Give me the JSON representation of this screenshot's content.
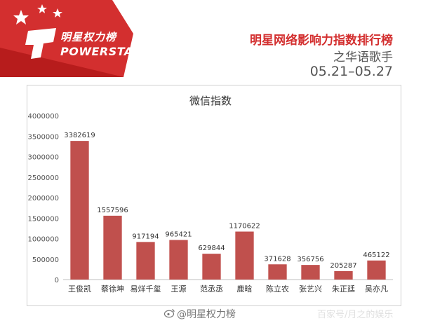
{
  "brand": {
    "logo_text": "明星权力榜",
    "brand_word": "POWERSTAR"
  },
  "header": {
    "title": "明星网络影响力指数排行榜",
    "subtitle": "之华语歌手",
    "date_range": "05.21–05.27"
  },
  "watermark": {
    "weibo_handle": "@明星权力榜",
    "corner": "百家号/月之的娱乐"
  },
  "colors": {
    "bar": "#c0504d",
    "brand_red": "#d32f2f"
  },
  "chart_data": {
    "type": "bar",
    "title": "微信指数",
    "xlabel": "",
    "ylabel": "",
    "categories": [
      "王俊凯",
      "蔡徐坤",
      "易烊千玺",
      "王源",
      "范丞丞",
      "鹿晗",
      "陈立农",
      "张艺兴",
      "朱正廷",
      "吴亦凡"
    ],
    "values": [
      3382619,
      1557596,
      917194,
      965421,
      629844,
      1170622,
      371628,
      356756,
      205287,
      465122
    ],
    "data_labels": [
      "3382619",
      "1557596",
      "917194",
      "965421",
      "629844",
      "1170622",
      "371628",
      "356756",
      "205287",
      "465122"
    ],
    "ylim": [
      0,
      4000000
    ],
    "yticks": [
      0,
      500000,
      1000000,
      1500000,
      2000000,
      2500000,
      3000000,
      3500000,
      4000000
    ],
    "ytick_labels": [
      "0",
      "500000",
      "1000000",
      "1500000",
      "2000000",
      "2500000",
      "3000000",
      "3500000",
      "4000000"
    ],
    "grid": false,
    "legend": "none"
  }
}
